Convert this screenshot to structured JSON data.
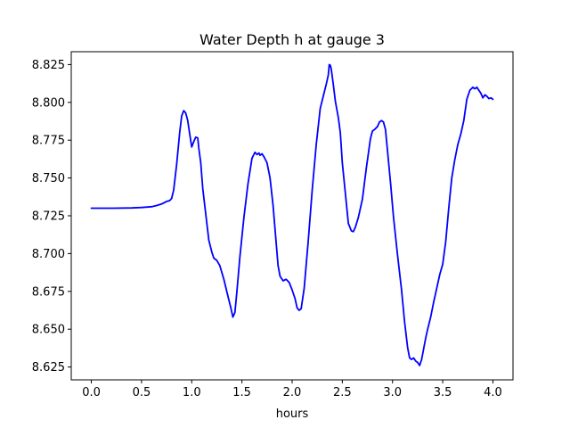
{
  "chart_data": {
    "type": "line",
    "title": "Water Depth h at gauge 3",
    "xlabel": "hours",
    "ylabel": "",
    "xlim": [
      -0.2,
      4.2
    ],
    "ylim": [
      8.6165,
      8.8335
    ],
    "x_ticks": [
      0.0,
      0.5,
      1.0,
      1.5,
      2.0,
      2.5,
      3.0,
      3.5,
      4.0
    ],
    "x_tick_labels": [
      "0.0",
      "0.5",
      "1.0",
      "1.5",
      "2.0",
      "2.5",
      "3.0",
      "3.5",
      "4.0"
    ],
    "y_ticks": [
      8.625,
      8.65,
      8.675,
      8.7,
      8.725,
      8.75,
      8.775,
      8.8,
      8.825
    ],
    "y_tick_labels": [
      "8.625",
      "8.650",
      "8.675",
      "8.700",
      "8.725",
      "8.750",
      "8.775",
      "8.800",
      "8.825"
    ],
    "grid": false,
    "legend": "none",
    "series": [
      {
        "color": "#0000ff",
        "x": [
          0.0,
          0.2,
          0.4,
          0.5,
          0.6,
          0.65,
          0.7,
          0.75,
          0.78,
          0.8,
          0.82,
          0.85,
          0.88,
          0.9,
          0.92,
          0.94,
          0.96,
          0.98,
          1.0,
          1.02,
          1.04,
          1.06,
          1.07,
          1.09,
          1.11,
          1.14,
          1.17,
          1.2,
          1.22,
          1.25,
          1.28,
          1.32,
          1.36,
          1.39,
          1.41,
          1.43,
          1.45,
          1.48,
          1.52,
          1.56,
          1.6,
          1.63,
          1.65,
          1.67,
          1.68,
          1.7,
          1.72,
          1.75,
          1.78,
          1.81,
          1.84,
          1.86,
          1.88,
          1.91,
          1.94,
          1.97,
          2.0,
          2.03,
          2.05,
          2.07,
          2.09,
          2.12,
          2.16,
          2.2,
          2.24,
          2.28,
          2.31,
          2.34,
          2.36,
          2.37,
          2.38,
          2.39,
          2.41,
          2.43,
          2.46,
          2.48,
          2.5,
          2.53,
          2.56,
          2.59,
          2.61,
          2.63,
          2.66,
          2.7,
          2.74,
          2.78,
          2.8,
          2.82,
          2.85,
          2.87,
          2.89,
          2.91,
          2.93,
          2.95,
          2.98,
          3.01,
          3.05,
          3.09,
          3.12,
          3.15,
          3.17,
          3.19,
          3.21,
          3.23,
          3.25,
          3.27,
          3.29,
          3.31,
          3.33,
          3.35,
          3.38,
          3.41,
          3.44,
          3.47,
          3.5,
          3.53,
          3.56,
          3.59,
          3.62,
          3.65,
          3.68,
          3.71,
          3.74,
          3.77,
          3.8,
          3.82,
          3.84,
          3.86,
          3.88,
          3.9,
          3.92,
          3.94,
          3.96,
          3.98,
          4.0
        ],
        "y": [
          8.73,
          8.73,
          8.7302,
          8.7305,
          8.731,
          8.7318,
          8.7328,
          8.7345,
          8.735,
          8.7365,
          8.742,
          8.759,
          8.78,
          8.791,
          8.7945,
          8.793,
          8.788,
          8.779,
          8.7705,
          8.774,
          8.777,
          8.7765,
          8.77,
          8.76,
          8.743,
          8.726,
          8.709,
          8.701,
          8.697,
          8.6955,
          8.692,
          8.683,
          8.672,
          8.664,
          8.658,
          8.661,
          8.675,
          8.698,
          8.724,
          8.746,
          8.763,
          8.767,
          8.7655,
          8.7665,
          8.765,
          8.766,
          8.764,
          8.76,
          8.75,
          8.732,
          8.708,
          8.692,
          8.685,
          8.682,
          8.683,
          8.681,
          8.676,
          8.67,
          8.664,
          8.6625,
          8.6635,
          8.677,
          8.708,
          8.742,
          8.772,
          8.796,
          8.804,
          8.812,
          8.818,
          8.825,
          8.8245,
          8.822,
          8.812,
          8.801,
          8.79,
          8.78,
          8.76,
          8.74,
          8.72,
          8.715,
          8.7145,
          8.7175,
          8.724,
          8.736,
          8.757,
          8.776,
          8.781,
          8.782,
          8.784,
          8.787,
          8.788,
          8.787,
          8.782,
          8.768,
          8.747,
          8.724,
          8.699,
          8.676,
          8.655,
          8.638,
          8.631,
          8.63,
          8.631,
          8.629,
          8.628,
          8.626,
          8.63,
          8.637,
          8.644,
          8.65,
          8.658,
          8.668,
          8.677,
          8.686,
          8.693,
          8.708,
          8.73,
          8.75,
          8.762,
          8.772,
          8.779,
          8.788,
          8.802,
          8.808,
          8.81,
          8.809,
          8.81,
          8.808,
          8.806,
          8.803,
          8.805,
          8.804,
          8.8025,
          8.803,
          8.802
        ]
      }
    ]
  }
}
